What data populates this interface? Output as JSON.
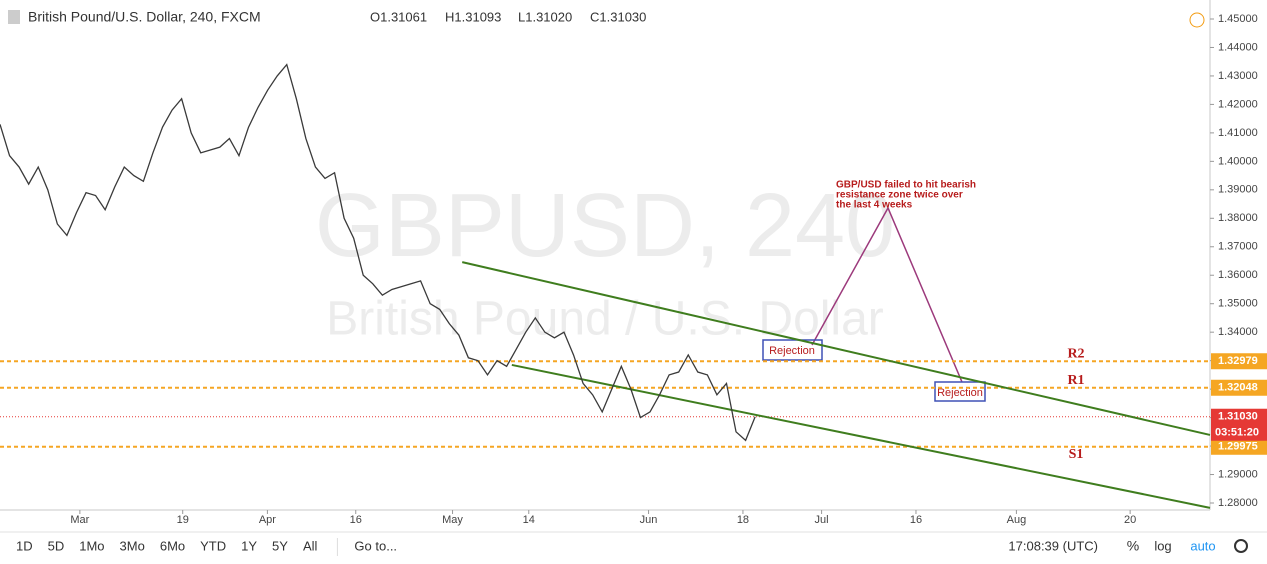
{
  "header": {
    "symbol": "British Pound/U.S. Dollar, 240, FXCM",
    "open": "O1.31061",
    "high": "H1.31093",
    "low": "L1.31020",
    "close": "C1.31030"
  },
  "watermark": {
    "line1": "GBPUSD, 240",
    "line2": "British Pound / U.S. Dollar"
  },
  "chart_data": {
    "type": "line",
    "color": "#3a3a3a",
    "values": [
      1.413,
      1.402,
      1.398,
      1.392,
      1.398,
      1.39,
      1.378,
      1.374,
      1.382,
      1.389,
      1.388,
      1.383,
      1.391,
      1.398,
      1.395,
      1.393,
      1.403,
      1.412,
      1.418,
      1.422,
      1.41,
      1.403,
      1.404,
      1.405,
      1.408,
      1.402,
      1.412,
      1.419,
      1.425,
      1.43,
      1.434,
      1.422,
      1.408,
      1.398,
      1.394,
      1.396,
      1.38,
      1.373,
      1.36,
      1.357,
      1.353,
      1.355,
      1.356,
      1.357,
      1.358,
      1.35,
      1.348,
      1.343,
      1.339,
      1.331,
      1.33,
      1.325,
      1.33,
      1.328,
      1.334,
      1.34,
      1.345,
      1.34,
      1.338,
      1.34,
      1.332,
      1.322,
      1.318,
      1.312,
      1.32,
      1.328,
      1.32,
      1.31,
      1.312,
      1.318,
      1.325,
      1.326,
      1.332,
      1.326,
      1.325,
      1.318,
      1.322,
      1.305,
      1.302,
      1.3103
    ],
    "xlim": [
      0,
      100
    ],
    "xticks": [
      {
        "value": 6.6,
        "label": "Mar"
      },
      {
        "value": 15.1,
        "label": "19"
      },
      {
        "value": 22.1,
        "label": "Apr"
      },
      {
        "value": 29.4,
        "label": "16"
      },
      {
        "value": 37.4,
        "label": "May"
      },
      {
        "value": 43.7,
        "label": "14"
      },
      {
        "value": 53.6,
        "label": "Jun"
      },
      {
        "value": 61.4,
        "label": "18"
      },
      {
        "value": 67.9,
        "label": "Jul"
      },
      {
        "value": 75.7,
        "label": "16"
      },
      {
        "value": 84.0,
        "label": "Aug"
      },
      {
        "value": 93.4,
        "label": "20"
      }
    ],
    "ylim": [
      1.2774,
      1.4543
    ],
    "yticks": [
      {
        "value": 1.28,
        "label": "1.28000"
      },
      {
        "value": 1.29,
        "label": "1.29000"
      },
      {
        "value": 1.3,
        "label": "1.30000"
      },
      {
        "value": 1.31,
        "label": "1.31000"
      },
      {
        "value": 1.32,
        "label": "1.32000"
      },
      {
        "value": 1.33,
        "label": "1.33000"
      },
      {
        "value": 1.34,
        "label": "1.34000"
      },
      {
        "value": 1.35,
        "label": "1.35000"
      },
      {
        "value": 1.36,
        "label": "1.36000"
      },
      {
        "value": 1.37,
        "label": "1.37000"
      },
      {
        "value": 1.38,
        "label": "1.38000"
      },
      {
        "value": 1.39,
        "label": "1.39000"
      },
      {
        "value": 1.4,
        "label": "1.40000"
      },
      {
        "value": 1.41,
        "label": "1.41000"
      },
      {
        "value": 1.42,
        "label": "1.42000"
      },
      {
        "value": 1.43,
        "label": "1.43000"
      },
      {
        "value": 1.44,
        "label": "1.44000"
      },
      {
        "value": 1.45,
        "label": "1.45000"
      }
    ],
    "levels": [
      {
        "name": "R2",
        "value": 1.32979,
        "color": "#f5a623"
      },
      {
        "name": "R1",
        "value": 1.32048,
        "color": "#f5a623"
      },
      {
        "name": "S1",
        "value": 1.29975,
        "label": "1.29975",
        "color": "#f5a623"
      }
    ],
    "current": {
      "value": 1.3103,
      "label": "1.31030",
      "countdown": "03:51:20",
      "color": "#e53935"
    },
    "channel": {
      "color": "#3f7d1e",
      "upper": {
        "x": [
          38.2,
          100
        ],
        "y": [
          1.3646,
          1.3039
        ]
      },
      "lower": {
        "x": [
          42.3,
          100
        ],
        "y": [
          1.3285,
          1.2783
        ]
      }
    },
    "annotation": [
      "GBP/USD failed to hit bearish",
      "resistance zone twice over",
      "the last 4 weeks"
    ],
    "rejections": [
      "Rejection",
      "Rejection"
    ]
  },
  "toolbar": {
    "ranges": [
      "1D",
      "5D",
      "1Mo",
      "3Mo",
      "6Mo",
      "YTD",
      "1Y",
      "5Y",
      "All"
    ],
    "goto": "Go to...",
    "time": "17:08:39 (UTC)",
    "percent": "%",
    "log": "log",
    "auto": "auto"
  }
}
